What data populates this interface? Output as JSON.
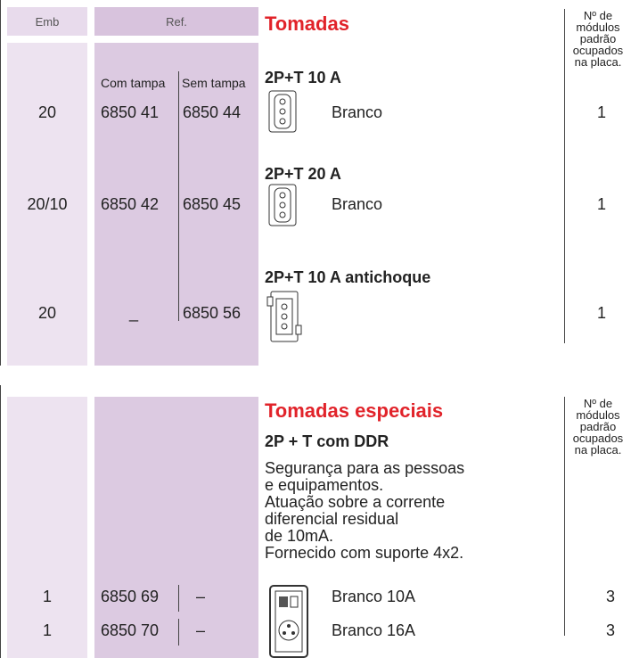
{
  "sections": [
    {
      "title": "Tomadas",
      "header": {
        "emb": "Emb",
        "ref": "Ref."
      },
      "modules_header": [
        "Nº de",
        "módulos",
        "padrão",
        "ocupados",
        "na  placa."
      ],
      "ref_subheaders": [
        "Com tampa",
        "Sem tampa"
      ],
      "products": [
        {
          "name": "2P+T 10 A",
          "emb": "20",
          "ref_com_tampa": "6850 41",
          "ref_sem_tampa": "6850 44",
          "color": "Branco",
          "modules": "1"
        },
        {
          "name": "2P+T 20 A",
          "emb": "20/10",
          "ref_com_tampa": "6850 42",
          "ref_sem_tampa": "6850 45",
          "color": "Branco",
          "modules": "1"
        },
        {
          "name": "2P+T 10 A antichoque",
          "emb": "20",
          "ref_com_tampa": "_",
          "ref_sem_tampa": "6850 56",
          "modules": "1"
        }
      ]
    },
    {
      "title": "Tomadas especiais",
      "modules_header": [
        "Nº de",
        "módulos",
        "padrão",
        "ocupados",
        "na  placa."
      ],
      "product": {
        "name": "2P + T com DDR",
        "description": [
          "Segurança para as pessoas",
          "e equipamentos.",
          "Atuação sobre a corrente",
          "diferencial residual",
          "de 10mA.",
          "Fornecido com suporte 4x2."
        ],
        "items": [
          {
            "emb": "1",
            "ref": "6850 69",
            "ref2": "–",
            "color": "Branco 10A",
            "modules": "3"
          },
          {
            "emb": "1",
            "ref": "6850 70",
            "ref2": "–",
            "color": "Branco 16A",
            "modules": "3"
          }
        ]
      }
    }
  ]
}
